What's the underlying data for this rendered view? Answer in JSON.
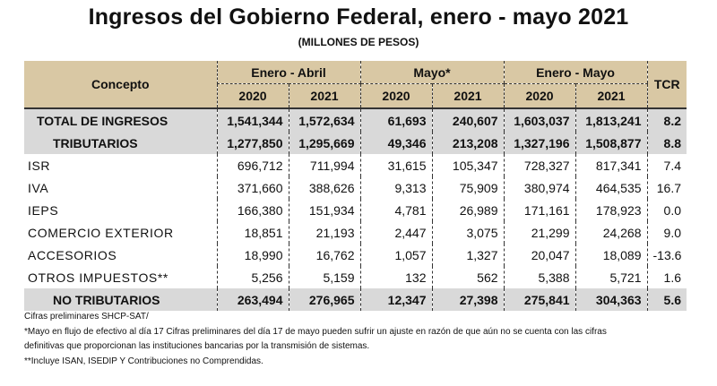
{
  "title": "Ingresos del Gobierno Federal, enero - mayo 2021",
  "subtitle": "(MILLONES DE PESOS)",
  "headers": {
    "concepto": "Concepto",
    "groups": [
      "Enero - Abril",
      "Mayo*",
      "Enero - Mayo"
    ],
    "years": [
      "2020",
      "2021",
      "2020",
      "2021",
      "2020",
      "2021"
    ],
    "tcr": "TCR"
  },
  "rows": [
    {
      "label": "TOTAL DE INGRESOS",
      "values": [
        "1,541,344",
        "1,572,634",
        "61,693",
        "240,607",
        "1,603,037",
        "1,813,241"
      ],
      "tcr": "8.2"
    },
    {
      "label": "TRIBUTARIOS",
      "values": [
        "1,277,850",
        "1,295,669",
        "49,346",
        "213,208",
        "1,327,196",
        "1,508,877"
      ],
      "tcr": "8.8"
    },
    {
      "label": "ISR",
      "values": [
        "696,712",
        "711,994",
        "31,615",
        "105,347",
        "728,327",
        "817,341"
      ],
      "tcr": "7.4"
    },
    {
      "label": "IVA",
      "values": [
        "371,660",
        "388,626",
        "9,313",
        "75,909",
        "380,974",
        "464,535"
      ],
      "tcr": "16.7"
    },
    {
      "label": "IEPS",
      "values": [
        "166,380",
        "151,934",
        "4,781",
        "26,989",
        "171,161",
        "178,923"
      ],
      "tcr": "0.0"
    },
    {
      "label": "COMERCIO EXTERIOR",
      "values": [
        "18,851",
        "21,193",
        "2,447",
        "3,075",
        "21,299",
        "24,268"
      ],
      "tcr": "9.0"
    },
    {
      "label": "ACCESORIOS",
      "values": [
        "18,990",
        "16,762",
        "1,057",
        "1,327",
        "20,047",
        "18,089"
      ],
      "tcr": "-13.6"
    },
    {
      "label": "OTROS IMPUESTOS**",
      "values": [
        "5,256",
        "5,159",
        "132",
        "562",
        "5,388",
        "5,721"
      ],
      "tcr": "1.6"
    },
    {
      "label": "NO TRIBUTARIOS",
      "values": [
        "263,494",
        "276,965",
        "12,347",
        "27,398",
        "275,841",
        "304,363"
      ],
      "tcr": "5.6"
    }
  ],
  "notes": [
    "Cifras preliminares SHCP-SAT/",
    "*Mayo en flujo de efectivo al día 17 Cifras preliminares del día 17 de mayo pueden sufrir un ajuste en razón de que aún no se cuenta con las cifras",
    "definitivas que proporcionan las instituciones bancarias por la transmisión de sistemas.",
    "**Incluye ISAN, ISEDIP Y Contribuciones no Comprendidas."
  ]
}
